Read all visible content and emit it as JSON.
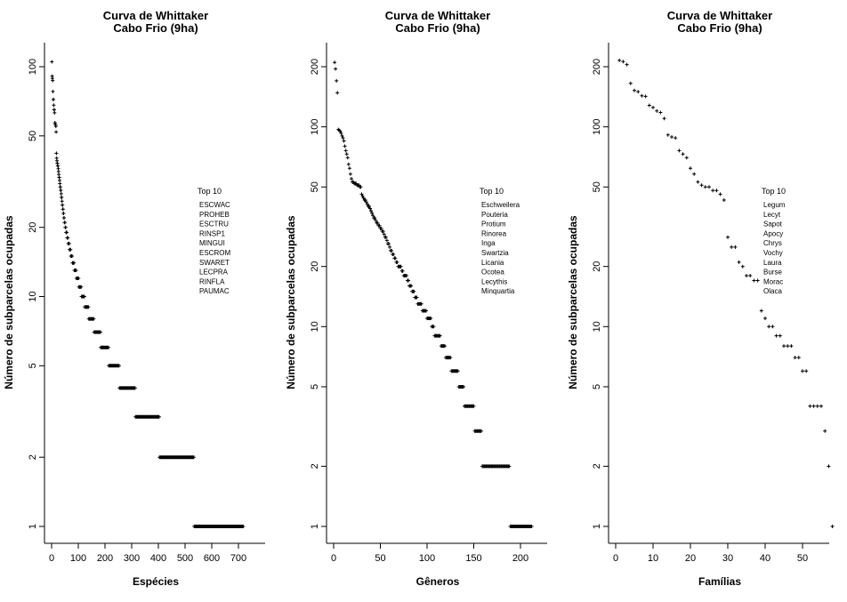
{
  "page": {
    "background": "#ffffff",
    "text_color": "#000000",
    "marker_color": "#000000"
  },
  "chart_data": [
    {
      "type": "scatter",
      "title": "Curva de Whittaker",
      "subtitle": "Cabo Frio (9ha)",
      "xlabel": "Espécies",
      "ylabel": "Número de subparcelas ocupadas",
      "y_scale": "log",
      "marker": "plus",
      "grid": false,
      "x_ticks": [
        0,
        100,
        200,
        300,
        400,
        500,
        600,
        700
      ],
      "y_ticks": [
        1,
        2,
        5,
        10,
        20,
        50,
        100
      ],
      "xlim": [
        0,
        720
      ],
      "ylim": [
        1,
        110
      ],
      "legend_position": "center-right",
      "legend_title": "Top 10",
      "legend_items": [
        "ESCWAC",
        "PROHEB",
        "ESCTRU",
        "RINSP1",
        "MINGUI",
        "ESCROM",
        "SWARET",
        "LECPRA",
        "RINFLA",
        "PAUMAC"
      ],
      "runs_encoding": "[occupied_subplots_value, count_of_consecutive_ranks] in descending rank order",
      "runs": [
        [
          105,
          1
        ],
        [
          91,
          1
        ],
        [
          89,
          1
        ],
        [
          87,
          1
        ],
        [
          78,
          1
        ],
        [
          72,
          2
        ],
        [
          68,
          1
        ],
        [
          65,
          2
        ],
        [
          63,
          1
        ],
        [
          57,
          2
        ],
        [
          56,
          2
        ],
        [
          55,
          1
        ],
        [
          52,
          1
        ],
        [
          42,
          1
        ],
        [
          40,
          1
        ],
        [
          39,
          1
        ],
        [
          38,
          2
        ],
        [
          37,
          2
        ],
        [
          36,
          1
        ],
        [
          35,
          1
        ],
        [
          34,
          1
        ],
        [
          33,
          2
        ],
        [
          32,
          1
        ],
        [
          31,
          1
        ],
        [
          30,
          2
        ],
        [
          29,
          2
        ],
        [
          28,
          1
        ],
        [
          27,
          2
        ],
        [
          26,
          1
        ],
        [
          25,
          2
        ],
        [
          24,
          2
        ],
        [
          23,
          2
        ],
        [
          22,
          2
        ],
        [
          21,
          3
        ],
        [
          20,
          3
        ],
        [
          19,
          4
        ],
        [
          18,
          4
        ],
        [
          17,
          5
        ],
        [
          16,
          5
        ],
        [
          15,
          6
        ],
        [
          14,
          7
        ],
        [
          13,
          8
        ],
        [
          12,
          9
        ],
        [
          11,
          10
        ],
        [
          10,
          12
        ],
        [
          9,
          15
        ],
        [
          8,
          20
        ],
        [
          7,
          25
        ],
        [
          6,
          30
        ],
        [
          5,
          40
        ],
        [
          4,
          60
        ],
        [
          3,
          90
        ],
        [
          2,
          130
        ],
        [
          1,
          185
        ]
      ]
    },
    {
      "type": "scatter",
      "title": "Curva de Whittaker",
      "subtitle": "Cabo Frio (9ha)",
      "xlabel": "Gêneros",
      "ylabel": "Número de subparcelas ocupadas",
      "y_scale": "log",
      "marker": "plus",
      "grid": false,
      "x_ticks": [
        0,
        50,
        100,
        150,
        200
      ],
      "y_ticks": [
        1,
        2,
        5,
        10,
        20,
        50,
        100,
        200
      ],
      "xlim": [
        0,
        215
      ],
      "ylim": [
        1,
        215
      ],
      "legend_position": "center-right",
      "legend_title": "Top 10",
      "legend_items": [
        "Eschweilera",
        "Pouteria",
        "Protium",
        "Rinorea",
        "Inga",
        "Swartzia",
        "Licania",
        "Ocotea",
        "Lecythis",
        "Minquartia"
      ],
      "runs_encoding": "[occupied_subplots_value, count_of_consecutive_ranks] in descending rank order",
      "runs": [
        [
          210,
          1
        ],
        [
          195,
          1
        ],
        [
          170,
          1
        ],
        [
          148,
          1
        ],
        [
          97,
          1
        ],
        [
          96,
          1
        ],
        [
          95,
          1
        ],
        [
          93,
          1
        ],
        [
          90,
          1
        ],
        [
          88,
          1
        ],
        [
          85,
          1
        ],
        [
          80,
          1
        ],
        [
          76,
          1
        ],
        [
          73,
          1
        ],
        [
          70,
          1
        ],
        [
          65,
          1
        ],
        [
          62,
          1
        ],
        [
          58,
          1
        ],
        [
          55,
          1
        ],
        [
          53,
          2
        ],
        [
          52,
          3
        ],
        [
          51,
          3
        ],
        [
          50,
          2
        ],
        [
          46,
          1
        ],
        [
          45,
          1
        ],
        [
          44,
          1
        ],
        [
          43,
          2
        ],
        [
          42,
          1
        ],
        [
          41,
          1
        ],
        [
          40,
          2
        ],
        [
          39,
          1
        ],
        [
          38,
          1
        ],
        [
          37,
          1
        ],
        [
          36,
          1
        ],
        [
          35,
          2
        ],
        [
          34,
          1
        ],
        [
          33,
          2
        ],
        [
          32,
          2
        ],
        [
          31,
          2
        ],
        [
          30,
          2
        ],
        [
          29,
          1
        ],
        [
          28,
          2
        ],
        [
          27,
          1
        ],
        [
          26,
          2
        ],
        [
          25,
          1
        ],
        [
          24,
          2
        ],
        [
          23,
          2
        ],
        [
          22,
          2
        ],
        [
          21,
          2
        ],
        [
          20,
          4
        ],
        [
          19,
          2
        ],
        [
          18,
          4
        ],
        [
          17,
          2
        ],
        [
          16,
          3
        ],
        [
          15,
          3
        ],
        [
          14,
          3
        ],
        [
          13,
          5
        ],
        [
          12,
          5
        ],
        [
          11,
          5
        ],
        [
          10,
          3
        ],
        [
          9,
          7
        ],
        [
          8,
          5
        ],
        [
          7,
          6
        ],
        [
          6,
          8
        ],
        [
          5,
          6
        ],
        [
          4,
          11
        ],
        [
          3,
          8
        ],
        [
          2,
          30
        ],
        [
          1,
          24
        ]
      ]
    },
    {
      "type": "scatter",
      "title": "Curva de Whittaker",
      "subtitle": "Cabo Frio (9ha)",
      "xlabel": "Famílias",
      "ylabel": "Número de subparcelas ocupadas",
      "y_scale": "log",
      "marker": "plus",
      "grid": false,
      "x_ticks": [
        0,
        10,
        20,
        30,
        40,
        50
      ],
      "y_ticks": [
        1,
        2,
        5,
        10,
        20,
        50,
        100,
        200
      ],
      "xlim": [
        0,
        58
      ],
      "ylim": [
        1,
        220
      ],
      "legend_position": "center-right",
      "legend_title": "Top 10",
      "legend_items": [
        "Legum",
        "Lecyt",
        "Sapot",
        "Apocy",
        "Chrys",
        "Vochy",
        "Laura",
        "Burse",
        "Morac",
        "Olaca"
      ],
      "runs_encoding": "[occupied_subplots_value, count_of_consecutive_ranks] in descending rank order",
      "runs": [
        [
          215,
          1
        ],
        [
          212,
          1
        ],
        [
          205,
          1
        ],
        [
          165,
          1
        ],
        [
          152,
          1
        ],
        [
          150,
          1
        ],
        [
          143,
          1
        ],
        [
          142,
          1
        ],
        [
          128,
          1
        ],
        [
          125,
          1
        ],
        [
          120,
          1
        ],
        [
          118,
          1
        ],
        [
          110,
          1
        ],
        [
          91,
          1
        ],
        [
          89,
          1
        ],
        [
          88,
          1
        ],
        [
          76,
          1
        ],
        [
          73,
          1
        ],
        [
          70,
          1
        ],
        [
          62,
          1
        ],
        [
          58,
          1
        ],
        [
          53,
          1
        ],
        [
          51,
          1
        ],
        [
          50,
          2
        ],
        [
          48,
          2
        ],
        [
          46,
          1
        ],
        [
          43,
          1
        ],
        [
          28,
          1
        ],
        [
          25,
          2
        ],
        [
          21,
          1
        ],
        [
          20,
          1
        ],
        [
          18,
          2
        ],
        [
          17,
          2
        ],
        [
          12,
          1
        ],
        [
          11,
          1
        ],
        [
          10,
          2
        ],
        [
          9,
          2
        ],
        [
          8,
          3
        ],
        [
          7,
          2
        ],
        [
          6,
          2
        ],
        [
          4,
          4
        ],
        [
          3,
          1
        ],
        [
          2,
          1
        ],
        [
          1,
          1
        ]
      ]
    }
  ]
}
